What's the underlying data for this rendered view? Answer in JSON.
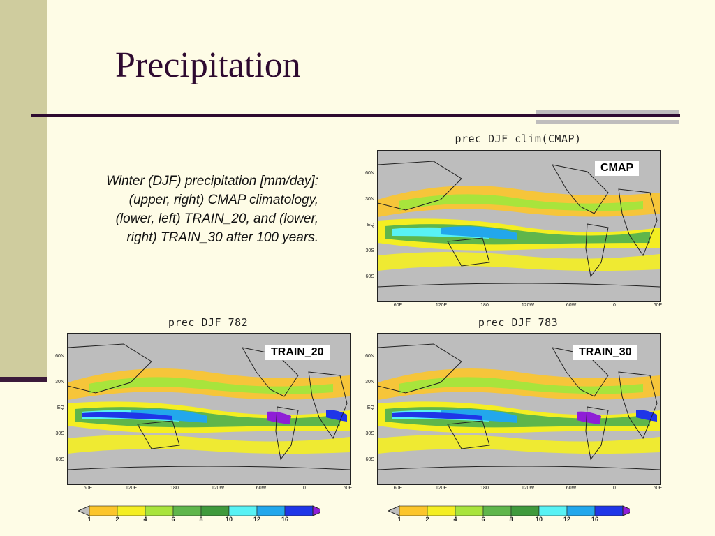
{
  "slide": {
    "title": "Precipitation",
    "caption": "Winter (DJF) precipitation [mm/day]: (upper, right) CMAP climatology, (lower, left) TRAIN_20, and (lower, right) TRAIN_30 after 100 years."
  },
  "maps": [
    {
      "title": "prec DJF clim(CMAP)",
      "tag": "CMAP"
    },
    {
      "title": "prec DJF 782",
      "tag": "TRAIN_20"
    },
    {
      "title": "prec DJF 783",
      "tag": "TRAIN_30"
    }
  ],
  "lat_labels": [
    "60N",
    "30N",
    "EQ",
    "30S",
    "60S"
  ],
  "lon_labels": [
    "60E",
    "120E",
    "180",
    "120W",
    "60W",
    "0",
    "60E"
  ],
  "colorbar": {
    "labels": [
      "1",
      "2",
      "4",
      "6",
      "8",
      "10",
      "12",
      "16"
    ],
    "colors": [
      "#bdbdbd",
      "#fcc52b",
      "#f4ee22",
      "#a8e43c",
      "#5fb64b",
      "#3f9a3c",
      "#58f2f4",
      "#22a7ec",
      "#1f36e8",
      "#8f1ed6"
    ]
  }
}
